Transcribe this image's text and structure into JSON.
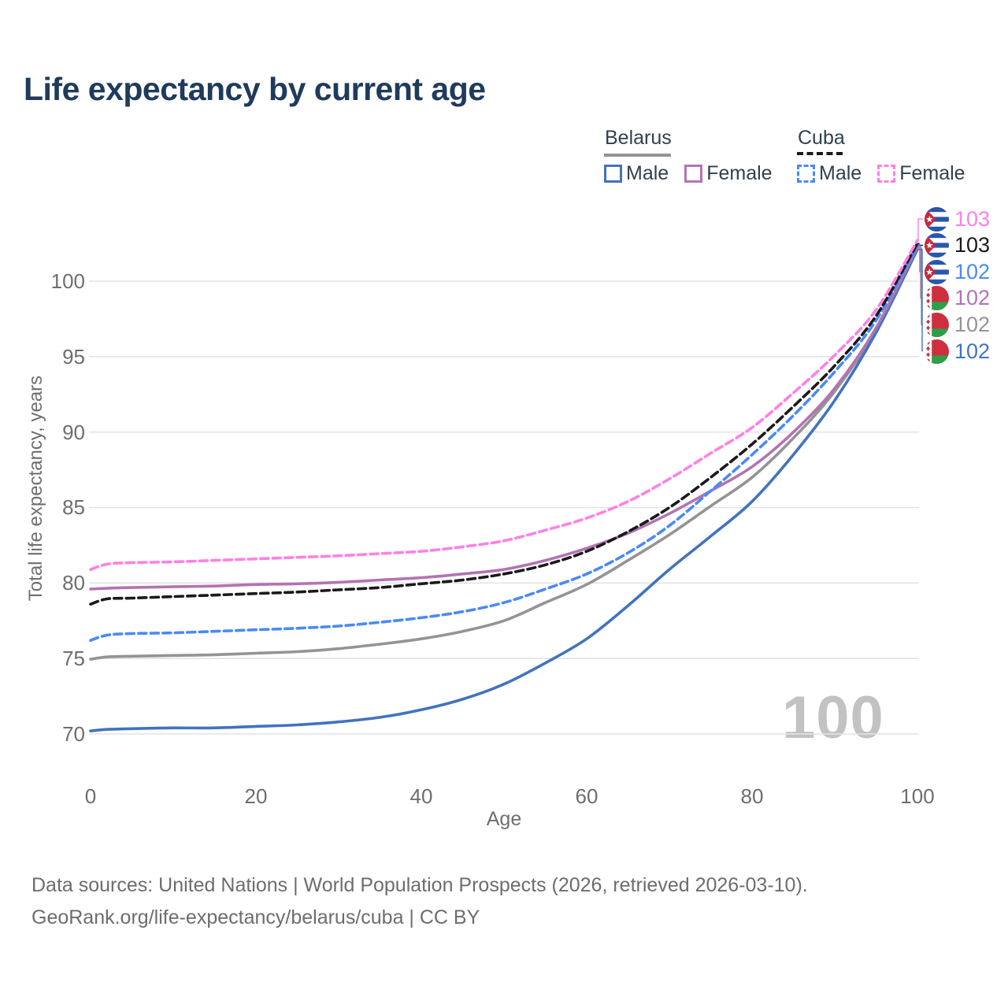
{
  "title": "Life expectancy by current age",
  "legend": {
    "groups": [
      {
        "label": "Belarus",
        "line_style": "solid",
        "line_color": "#949494",
        "items": [
          {
            "label": "Male",
            "color": "#4273bd",
            "style": "solid"
          },
          {
            "label": "Female",
            "color": "#b274b2",
            "style": "solid"
          }
        ]
      },
      {
        "label": "Cuba",
        "line_style": "dashed",
        "line_color": "#1a1a1a",
        "items": [
          {
            "label": "Male",
            "color": "#4a8af4",
            "style": "dashed"
          },
          {
            "label": "Female",
            "color": "#ff80e5",
            "style": "dashed"
          }
        ]
      }
    ]
  },
  "chart_data": {
    "type": "line",
    "title": "Life expectancy by current age",
    "xlabel": "Age",
    "ylabel": "Total life expectancy, years",
    "x_ticks": [
      0,
      20,
      40,
      60,
      80,
      100
    ],
    "y_ticks": [
      70,
      75,
      80,
      85,
      90,
      95,
      100
    ],
    "xlim": [
      0,
      100
    ],
    "ylim": [
      70,
      103
    ],
    "grid": "horizontal",
    "legend_position": "top-right",
    "x": [
      0,
      2,
      5,
      10,
      15,
      20,
      25,
      30,
      35,
      40,
      45,
      50,
      55,
      60,
      65,
      70,
      75,
      80,
      85,
      90,
      95,
      100
    ],
    "series": [
      {
        "name": "Cuba Female",
        "country": "Cuba",
        "sex": "Female",
        "color": "#ff80e5",
        "dash": true,
        "end_label": "103",
        "values": [
          80.9,
          81.25,
          81.35,
          81.4,
          81.5,
          81.6,
          81.7,
          81.8,
          81.95,
          82.1,
          82.4,
          82.8,
          83.5,
          84.3,
          85.4,
          86.9,
          88.6,
          90.3,
          92.6,
          95.1,
          98.1,
          102.7
        ]
      },
      {
        "name": "Cuba",
        "country": "Cuba",
        "sex": "Both",
        "color": "#1a1a1a",
        "dash": true,
        "end_label": "103",
        "values": [
          78.6,
          78.95,
          79.0,
          79.1,
          79.2,
          79.3,
          79.4,
          79.55,
          79.7,
          79.95,
          80.2,
          80.6,
          81.2,
          82.1,
          83.4,
          85.0,
          87.0,
          89.2,
          91.7,
          94.4,
          97.7,
          102.5
        ]
      },
      {
        "name": "Cuba Male",
        "country": "Cuba",
        "sex": "Male",
        "color": "#4a8af4",
        "dash": true,
        "end_label": "102",
        "values": [
          76.2,
          76.55,
          76.65,
          76.7,
          76.8,
          76.9,
          77.0,
          77.15,
          77.4,
          77.7,
          78.1,
          78.7,
          79.6,
          80.6,
          82.0,
          83.8,
          86.1,
          88.5,
          91.1,
          94.0,
          97.4,
          102.4
        ]
      },
      {
        "name": "Belarus Female",
        "country": "Belarus",
        "sex": "Female",
        "color": "#b274b2",
        "dash": false,
        "end_label": "102",
        "values": [
          79.6,
          79.65,
          79.7,
          79.75,
          79.8,
          79.9,
          79.95,
          80.05,
          80.2,
          80.35,
          80.6,
          80.9,
          81.5,
          82.3,
          83.3,
          84.6,
          86.1,
          87.7,
          90.0,
          92.9,
          96.9,
          102.3
        ]
      },
      {
        "name": "Belarus",
        "country": "Belarus",
        "sex": "Both",
        "color": "#949494",
        "dash": false,
        "end_label": "102",
        "values": [
          74.95,
          75.1,
          75.15,
          75.2,
          75.25,
          75.35,
          75.45,
          75.65,
          75.95,
          76.3,
          76.8,
          77.5,
          78.7,
          79.9,
          81.5,
          83.2,
          85.1,
          87.0,
          89.6,
          92.7,
          96.8,
          102.2
        ]
      },
      {
        "name": "Belarus Male",
        "country": "Belarus",
        "sex": "Male",
        "color": "#4273bd",
        "dash": false,
        "end_label": "102",
        "values": [
          70.2,
          70.3,
          70.35,
          70.4,
          70.4,
          70.5,
          70.6,
          70.8,
          71.1,
          71.6,
          72.3,
          73.3,
          74.7,
          76.3,
          78.5,
          80.9,
          83.1,
          85.4,
          88.5,
          92.1,
          96.6,
          102.1
        ]
      }
    ]
  },
  "end_labels": [
    {
      "value": "103",
      "flag": "cuba"
    },
    {
      "value": "103",
      "flag": "cuba"
    },
    {
      "value": "102",
      "flag": "cuba"
    },
    {
      "value": "102",
      "flag": "belarus"
    },
    {
      "value": "102",
      "flag": "belarus"
    },
    {
      "value": "102",
      "flag": "belarus"
    }
  ],
  "watermark": "100",
  "footer": {
    "line1": "Data sources: United Nations | World Population Prospects (2026, retrieved 2026-03-10).",
    "line2": "GeoRank.org/life-expectancy/belarus/cuba | CC BY"
  }
}
